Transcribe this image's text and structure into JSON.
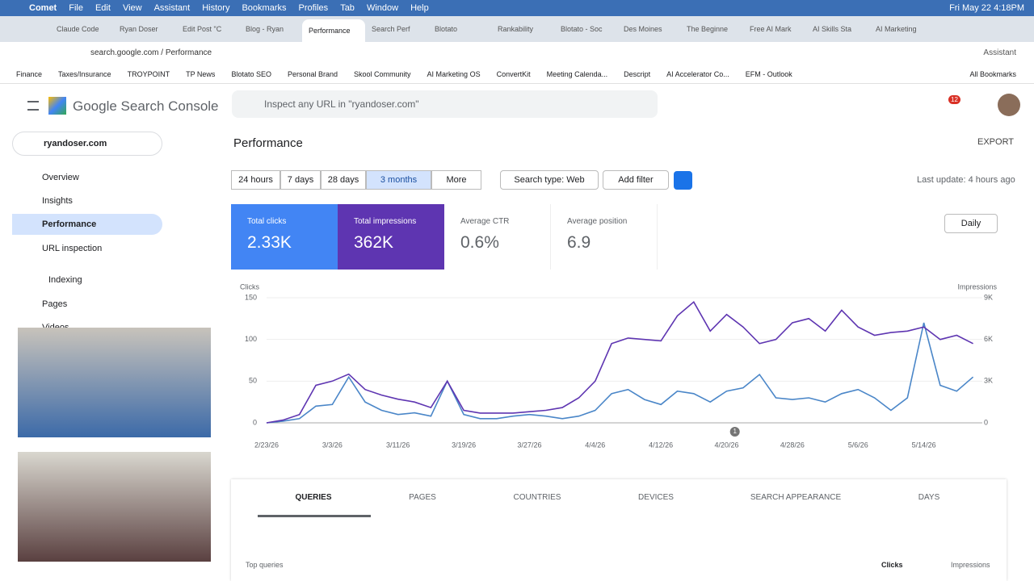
{
  "menubar": {
    "app": "Comet",
    "items": [
      "File",
      "Edit",
      "View",
      "Assistant",
      "History",
      "Bookmarks",
      "Profiles",
      "Tab",
      "Window",
      "Help"
    ],
    "clock": "Fri May 22  4:18PM"
  },
  "tabs": [
    "Claude Code",
    "Ryan Doser",
    "Edit Post \"C",
    "Blog - Ryan",
    "Performance",
    "Search Perf",
    "Blotato",
    "Rankability",
    "Blotato - Soc",
    "Des Moines",
    "The Beginne",
    "Free AI Mark",
    "AI Skills Sta",
    "AI Marketing"
  ],
  "toolbar": {
    "address": "search.google.com / Performance",
    "assistant": "Assistant"
  },
  "bookmarks": {
    "items": [
      "Finance",
      "Taxes/Insurance",
      "TROYPOINT",
      "TP News",
      "Blotato SEO",
      "Personal Brand",
      "Skool Community",
      "AI Marketing OS",
      "ConvertKit",
      "Meeting Calenda...",
      "Descript",
      "AI Accelerator Co...",
      "EFM - Outlook"
    ],
    "all": "All Bookmarks"
  },
  "header": {
    "product": "Google Search Console",
    "search_placeholder": "Inspect any URL in \"ryandoser.com\"",
    "notifications": "12"
  },
  "sidebar": {
    "property": "ryandoser.com",
    "nav": [
      "Overview",
      "Insights",
      "Performance",
      "URL inspection"
    ],
    "section": "Indexing",
    "sub": [
      "Pages",
      "Videos"
    ]
  },
  "page": {
    "title": "Performance",
    "export": "EXPORT",
    "dates": [
      "24 hours",
      "7 days",
      "28 days",
      "3 months",
      "More"
    ],
    "search_type": "Search type: Web",
    "add_filter": "Add filter",
    "last_update": "Last update: 4 hours ago",
    "granularity": "Daily"
  },
  "metrics": [
    {
      "label": "Total clicks",
      "value": "2.33K"
    },
    {
      "label": "Total impressions",
      "value": "362K"
    },
    {
      "label": "Average CTR",
      "value": "0.6%"
    },
    {
      "label": "Average position",
      "value": "6.9"
    }
  ],
  "chart": {
    "type": "line",
    "ylabel": "Clicks",
    "y2label": "Impressions",
    "ylim": [
      0,
      150
    ],
    "yticks": [
      0,
      50,
      100,
      150
    ],
    "y2lim": [
      0,
      9000
    ],
    "y2ticks": [
      0,
      {
        "value": 3000,
        "label": "3K"
      },
      {
        "value": 6000,
        "label": "6K"
      },
      {
        "value": 9000,
        "label": "9K"
      }
    ],
    "x_labels": [
      "2/23/26",
      "3/3/26",
      "3/11/26",
      "3/19/26",
      "3/27/26",
      "4/4/26",
      "4/12/26",
      "4/20/26",
      "4/28/26",
      "5/6/26",
      "5/14/26"
    ],
    "annotation": "1",
    "series": [
      {
        "name": "Total clicks",
        "color": "#4a86c8",
        "values": [
          0,
          2,
          5,
          20,
          22,
          55,
          25,
          15,
          10,
          12,
          8,
          50,
          10,
          5,
          5,
          8,
          10,
          8,
          5,
          8,
          15,
          35,
          40,
          28,
          22,
          38,
          35,
          25,
          38,
          42,
          58,
          30,
          28,
          30,
          25,
          35,
          40,
          30,
          15,
          30,
          120,
          45,
          38,
          55
        ]
      },
      {
        "name": "Total impressions",
        "color": "#5e35b1",
        "axis": "y2",
        "values": [
          0,
          200,
          600,
          2700,
          3000,
          3500,
          2400,
          2000,
          1700,
          1500,
          1100,
          3000,
          900,
          700,
          700,
          700,
          800,
          900,
          1100,
          1800,
          3000,
          5700,
          6100,
          6000,
          5900,
          7700,
          8700,
          6600,
          7800,
          6900,
          5700,
          6000,
          7200,
          7500,
          6600,
          8100,
          6900,
          6300,
          6500,
          6600,
          6900,
          6000,
          6300,
          5700
        ]
      }
    ]
  },
  "report_tabs": [
    "QUERIES",
    "PAGES",
    "COUNTRIES",
    "DEVICES",
    "SEARCH APPEARANCE",
    "DAYS"
  ],
  "table": {
    "title": "Top queries",
    "columns": [
      "Clicks",
      "Impressions"
    ]
  }
}
